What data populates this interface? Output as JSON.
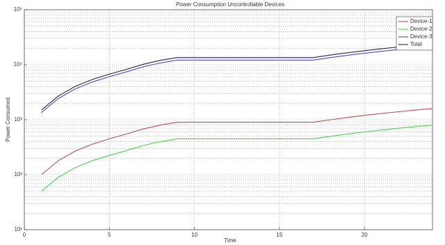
{
  "chart_data": {
    "type": "line",
    "title": "Power Consumption Uncontrollable Devices",
    "x_label": "Time",
    "y_label": "Power Consumed",
    "x": [
      1,
      2,
      3,
      4,
      5,
      6,
      7,
      8,
      9,
      10,
      11,
      12,
      13,
      14,
      15,
      16,
      17,
      18,
      19,
      20,
      21,
      22,
      23,
      24
    ],
    "series": [
      {
        "name": "Device-1",
        "color": "#c04848",
        "values": [
          100,
          180,
          270,
          360,
          450,
          550,
          680,
          800,
          900,
          900,
          900,
          900,
          900,
          900,
          900,
          900,
          900,
          1000,
          1100,
          1200,
          1300,
          1400,
          1500,
          1600
        ]
      },
      {
        "name": "Device-2",
        "color": "#48d048",
        "values": [
          50,
          90,
          135,
          180,
          225,
          275,
          340,
          400,
          450,
          450,
          450,
          450,
          450,
          450,
          450,
          450,
          450,
          500,
          550,
          600,
          650,
          700,
          750,
          800
        ]
      },
      {
        "name": "Device-3",
        "color": "#4848c8",
        "values": [
          1350,
          2430,
          3645,
          4860,
          6075,
          7425,
          9180,
          10800,
          12150,
          12150,
          12150,
          12150,
          12150,
          12150,
          12150,
          12150,
          12150,
          13500,
          14850,
          16200,
          17550,
          18900,
          20250,
          21600
        ]
      },
      {
        "name": "Total",
        "color": "#202050",
        "values": [
          1500,
          2700,
          4050,
          5400,
          6750,
          8250,
          10200,
          12000,
          13500,
          13500,
          13500,
          13500,
          13500,
          13500,
          13500,
          13500,
          13500,
          15000,
          16500,
          18000,
          19500,
          21000,
          22500,
          24000
        ]
      }
    ],
    "xlim": [
      0,
      24
    ],
    "xticks": [
      0,
      5,
      10,
      15,
      20
    ],
    "ylim": [
      10,
      100000
    ],
    "yticks": [
      {
        "value": 10,
        "label": "10¹"
      },
      {
        "value": 100,
        "label": "10²"
      },
      {
        "value": 1000,
        "label": "10³"
      },
      {
        "value": 10000,
        "label": "10⁴"
      },
      {
        "value": 100000,
        "label": "10⁵"
      }
    ],
    "y_scale": "log",
    "grid": true,
    "minor_grid": true,
    "legend": "top-right"
  }
}
